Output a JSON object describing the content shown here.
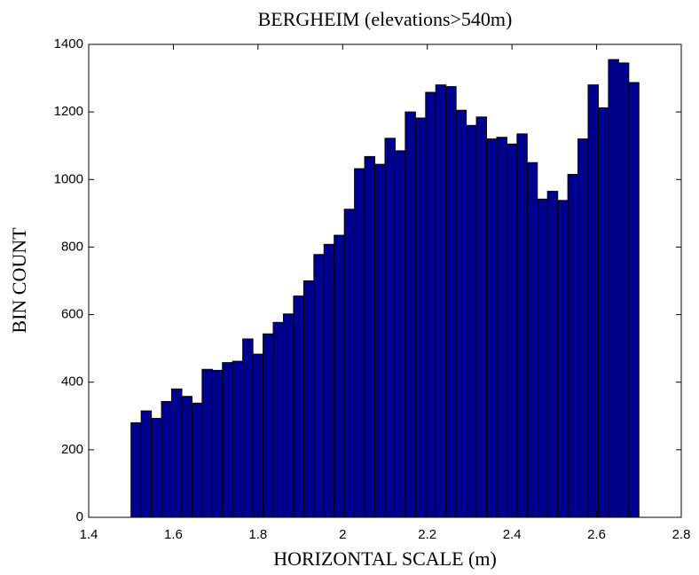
{
  "chart_data": {
    "type": "histogram",
    "title": "BERGHEIM (elevations>540m)",
    "x_label": "HORIZONTAL SCALE (m)",
    "y_label": "BIN COUNT",
    "bins": [
      1.5,
      1.524,
      1.548,
      1.572,
      1.596,
      1.62,
      1.644,
      1.668,
      1.692,
      1.716,
      1.74,
      1.764,
      1.788,
      1.812,
      1.836,
      1.86,
      1.884,
      1.908,
      1.932,
      1.956,
      1.98,
      2.004,
      2.028,
      2.052,
      2.076,
      2.1,
      2.124,
      2.148,
      2.172,
      2.196,
      2.22,
      2.244,
      2.268,
      2.292,
      2.316,
      2.34,
      2.364,
      2.388,
      2.412,
      2.436,
      2.46,
      2.484,
      2.508,
      2.532,
      2.556,
      2.58,
      2.604,
      2.628,
      2.652,
      2.676,
      2.7
    ],
    "values": [
      280,
      315,
      293,
      343,
      380,
      358,
      338,
      438,
      435,
      458,
      462,
      528,
      483,
      543,
      577,
      602,
      655,
      700,
      778,
      808,
      835,
      912,
      1032,
      1068,
      1045,
      1122,
      1085,
      1200,
      1182,
      1258,
      1280,
      1275,
      1205,
      1160,
      1185,
      1120,
      1125,
      1105,
      1135,
      1050,
      942,
      965,
      938,
      1015,
      1120,
      1280,
      1212,
      1355,
      1345,
      1287
    ],
    "color": "#00008f",
    "xlim": [
      1.4,
      2.8
    ],
    "xticks": [
      1.4,
      1.6,
      1.8,
      2,
      2.2,
      2.4,
      2.6,
      2.8
    ],
    "ylim": [
      0,
      1400
    ],
    "yticks": [
      0,
      200,
      400,
      600,
      800,
      1000,
      1200,
      1400
    ]
  }
}
